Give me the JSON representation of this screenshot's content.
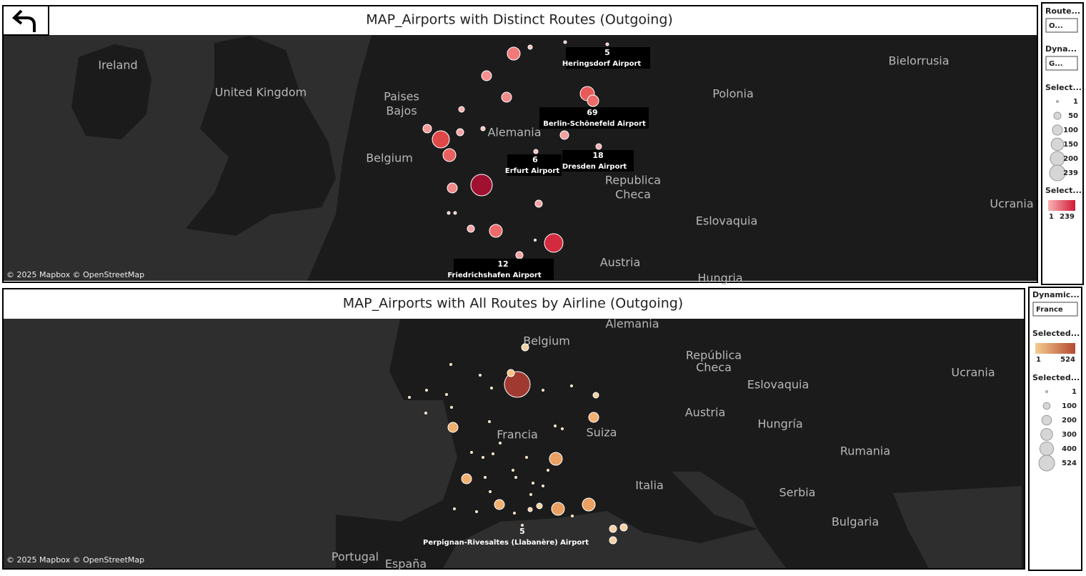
{
  "top_map": {
    "title": "MAP_Airports with Distinct Routes (Outgoing)",
    "attribution": "© 2025 Mapbox © OpenStreetMap",
    "places": [
      "Ireland",
      "United Kingdom",
      "Paises",
      "Bajos",
      "Belgium",
      "Alemania",
      "Polonia",
      "Bielorrusia",
      "Republica",
      "Checa",
      "Eslovaquia",
      "Austria",
      "Ucrania",
      "Hungria"
    ],
    "airports": [
      {
        "routes": 5,
        "name": "Heringsdorf Airport"
      },
      {
        "routes": 69,
        "name": "Berlin-Schönefeld Airport"
      },
      {
        "routes": 6,
        "name": "Erfurt Airport"
      },
      {
        "routes": 18,
        "name": "Dresden Airport"
      },
      {
        "routes": 12,
        "name": "Friedrichshafen Airport"
      }
    ]
  },
  "top_controls": {
    "filters": [
      {
        "label": "Route...",
        "value": "O..."
      },
      {
        "label": "Dyna...",
        "value": "G..."
      }
    ],
    "size_legend": {
      "title": "Select...",
      "items": [
        1,
        50,
        100,
        150,
        200,
        239
      ]
    },
    "color_legend": {
      "title": "Select...",
      "min": 1,
      "max": 239
    }
  },
  "bottom_map": {
    "title": "MAP_Airports with All Routes by Airline (Outgoing)",
    "attribution": "© 2025 Mapbox © OpenStreetMap",
    "places": [
      "Alemania",
      "Belgium",
      "República",
      "Checa",
      "Eslovaquia",
      "Ucrania",
      "Austria",
      "Hungría",
      "Suiza",
      "Francia",
      "Rumania",
      "Italia",
      "Serbia",
      "Bulgaria",
      "Portugal",
      "España"
    ],
    "airports": [
      {
        "routes": 5,
        "name": "Perpignan-Rivesaltes (Llabanère) Airport"
      }
    ]
  },
  "bottom_controls": {
    "filters": [
      {
        "label": "Dynamic...",
        "value": "France"
      }
    ],
    "color_legend": {
      "title": "Selected...",
      "min": 1,
      "max": 524
    },
    "size_legend": {
      "title": "Selected...",
      "items": [
        1,
        100,
        200,
        300,
        400,
        524
      ]
    }
  }
}
